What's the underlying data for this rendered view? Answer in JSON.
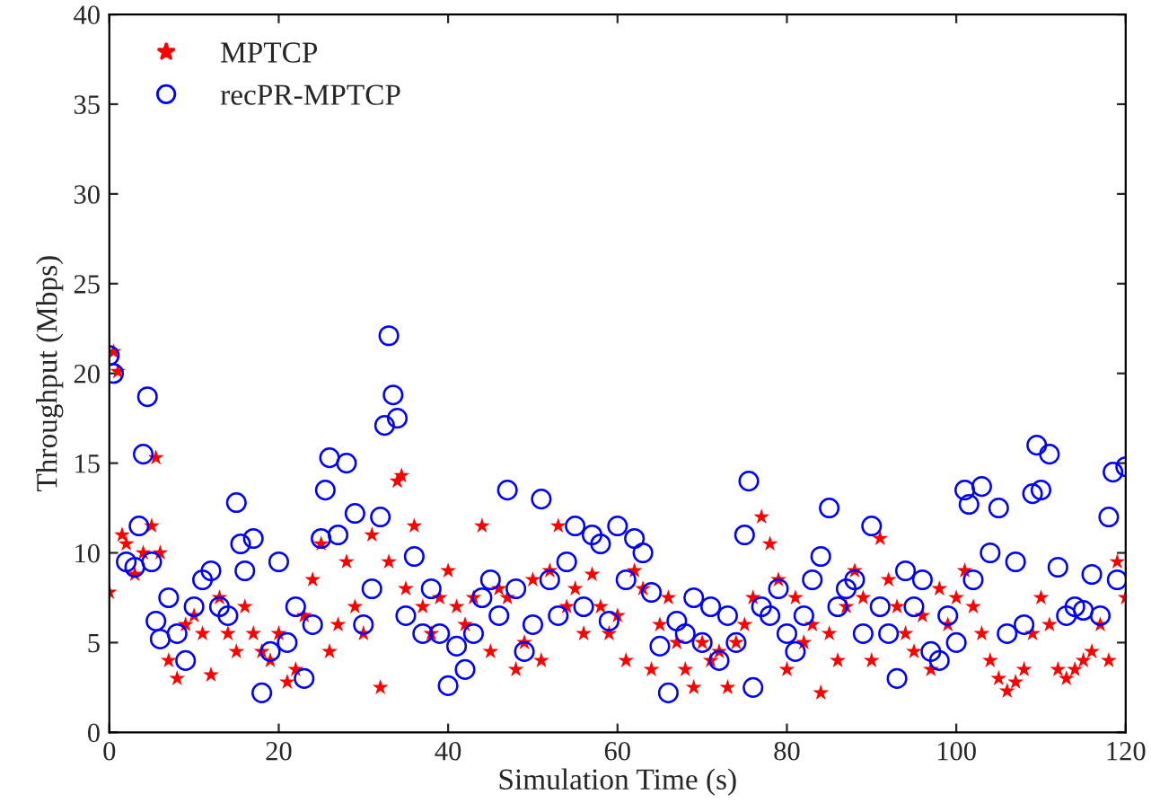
{
  "chart_data": {
    "type": "scatter",
    "xlabel": "Simulation Time (s)",
    "ylabel": "Throughput (Mbps)",
    "xlim": [
      0,
      120
    ],
    "xticks": [
      0,
      20,
      40,
      60,
      80,
      100,
      120
    ],
    "ylim": [
      0,
      40
    ],
    "yticks": [
      0,
      5,
      10,
      15,
      20,
      25,
      30,
      35,
      40
    ],
    "grid": false,
    "legend": "top left",
    "series": [
      {
        "name": "MPTCP",
        "color": "#ff0000",
        "marker": "star",
        "x": [
          0,
          0.5,
          1,
          1.5,
          2,
          3,
          4,
          5,
          5.5,
          6,
          7,
          8,
          9,
          10,
          11,
          12,
          13,
          14,
          15,
          16,
          17,
          18,
          19,
          20,
          21,
          22,
          23,
          24,
          25,
          26,
          27,
          28,
          29,
          30,
          31,
          32,
          33,
          34,
          34.5,
          35,
          36,
          37,
          38,
          39,
          40,
          41,
          42,
          43,
          44,
          45,
          46,
          47,
          48,
          49,
          50,
          51,
          52,
          53,
          54,
          55,
          56,
          57,
          58,
          59,
          60,
          61,
          62,
          63,
          64,
          65,
          66,
          67,
          68,
          69,
          70,
          71,
          72,
          73,
          74,
          75,
          76,
          77,
          78,
          79,
          80,
          81,
          82,
          83,
          84,
          85,
          86,
          87,
          88,
          89,
          90,
          91,
          92,
          93,
          94,
          95,
          96,
          97,
          98,
          99,
          100,
          101,
          102,
          103,
          104,
          105,
          106,
          107,
          108,
          109,
          110,
          111,
          112,
          113,
          114,
          115,
          116,
          117,
          118,
          119,
          120
        ],
        "values": [
          7.8,
          21.2,
          20.1,
          11,
          10.5,
          8.8,
          10,
          11.5,
          15.3,
          10,
          4,
          3,
          6,
          6.5,
          5.5,
          3.2,
          7.5,
          5.5,
          4.5,
          7,
          5.5,
          4.5,
          4,
          5.5,
          2.8,
          3.5,
          6.5,
          8.5,
          10.5,
          4.5,
          6,
          9.5,
          7,
          5.5,
          11,
          2.5,
          9.5,
          14,
          14.3,
          8,
          11.5,
          7,
          5.5,
          7.5,
          9,
          7,
          6,
          7.5,
          11.5,
          4.5,
          8,
          7.5,
          3.5,
          5,
          8.5,
          4,
          9,
          11.5,
          7,
          8,
          5.5,
          8.8,
          7,
          5.5,
          6.5,
          4,
          9,
          8,
          3.5,
          6,
          7.5,
          5,
          3.5,
          2.5,
          5,
          4,
          4.5,
          2.5,
          5,
          6,
          7.5,
          12,
          10.5,
          8.5,
          3.5,
          7.5,
          5,
          6,
          2.2,
          5.5,
          4,
          7,
          9,
          7.5,
          4,
          10.8,
          8.5,
          7,
          5.5,
          4.5,
          6.5,
          3.5,
          8,
          6,
          7.5,
          9,
          7,
          5.5,
          4,
          3,
          2.3,
          2.8,
          3.5,
          5.5,
          7.5,
          6,
          3.5,
          3,
          3.5,
          4,
          4.5,
          6,
          4,
          9.5,
          7.5
        ]
      },
      {
        "name": "recPR-MPTCP",
        "color": "#0000ff",
        "marker": "circle",
        "x": [
          0,
          0.5,
          2,
          3,
          3.5,
          4,
          4.5,
          5,
          5.5,
          6,
          7,
          8,
          9,
          10,
          11,
          12,
          13,
          14,
          15,
          15.5,
          16,
          17,
          18,
          19,
          20,
          21,
          22,
          23,
          24,
          25,
          25.5,
          26,
          27,
          28,
          29,
          30,
          31,
          32,
          32.5,
          33,
          33.5,
          34,
          35,
          36,
          37,
          38,
          39,
          40,
          41,
          42,
          43,
          44,
          45,
          46,
          47,
          48,
          49,
          50,
          51,
          52,
          53,
          54,
          55,
          56,
          57,
          58,
          59,
          60,
          61,
          62,
          63,
          64,
          65,
          66,
          67,
          68,
          69,
          70,
          71,
          72,
          73,
          74,
          75,
          75.5,
          76,
          77,
          78,
          79,
          80,
          81,
          82,
          83,
          84,
          85,
          86,
          87,
          88,
          89,
          90,
          91,
          92,
          93,
          94,
          95,
          96,
          97,
          98,
          99,
          100,
          101,
          101.5,
          102,
          103,
          104,
          105,
          106,
          107,
          108,
          109,
          109.5,
          110,
          111,
          112,
          113,
          114,
          115,
          116,
          117,
          118,
          118.5,
          119,
          120
        ],
        "values": [
          21,
          20,
          9.5,
          9.2,
          11.5,
          15.5,
          18.7,
          9.5,
          6.2,
          5.2,
          7.5,
          5.5,
          4,
          7,
          8.5,
          9,
          7,
          6.5,
          12.8,
          10.5,
          9,
          10.8,
          2.2,
          4.5,
          9.5,
          5,
          7,
          3,
          6,
          10.8,
          13.5,
          15.3,
          11,
          15,
          12.2,
          6,
          8,
          12,
          17.1,
          22.1,
          18.8,
          17.5,
          6.5,
          9.8,
          5.5,
          8,
          5.5,
          2.6,
          4.8,
          3.5,
          5.5,
          7.5,
          8.5,
          6.5,
          13.5,
          8,
          4.5,
          6,
          13,
          8.5,
          6.5,
          9.5,
          11.5,
          7,
          11,
          10.5,
          6.2,
          11.5,
          8.5,
          10.8,
          10,
          7.8,
          4.8,
          2.2,
          6.2,
          5.5,
          7.5,
          5,
          7,
          4,
          6.5,
          5,
          11,
          14,
          2.5,
          7,
          6.5,
          8,
          5.5,
          4.5,
          6.5,
          8.5,
          9.8,
          12.5,
          7,
          8,
          8.5,
          5.5,
          11.5,
          7,
          5.5,
          3,
          9,
          7,
          8.5,
          4.5,
          4,
          6.5,
          5,
          13.5,
          12.7,
          8.5,
          13.7,
          10,
          12.5,
          5.5,
          9.5,
          6,
          13.3,
          16,
          13.5,
          15.5,
          9.2,
          6.5,
          7,
          6.8,
          8.8,
          6.5,
          12,
          14.5,
          8.5,
          14.8
        ]
      }
    ]
  }
}
